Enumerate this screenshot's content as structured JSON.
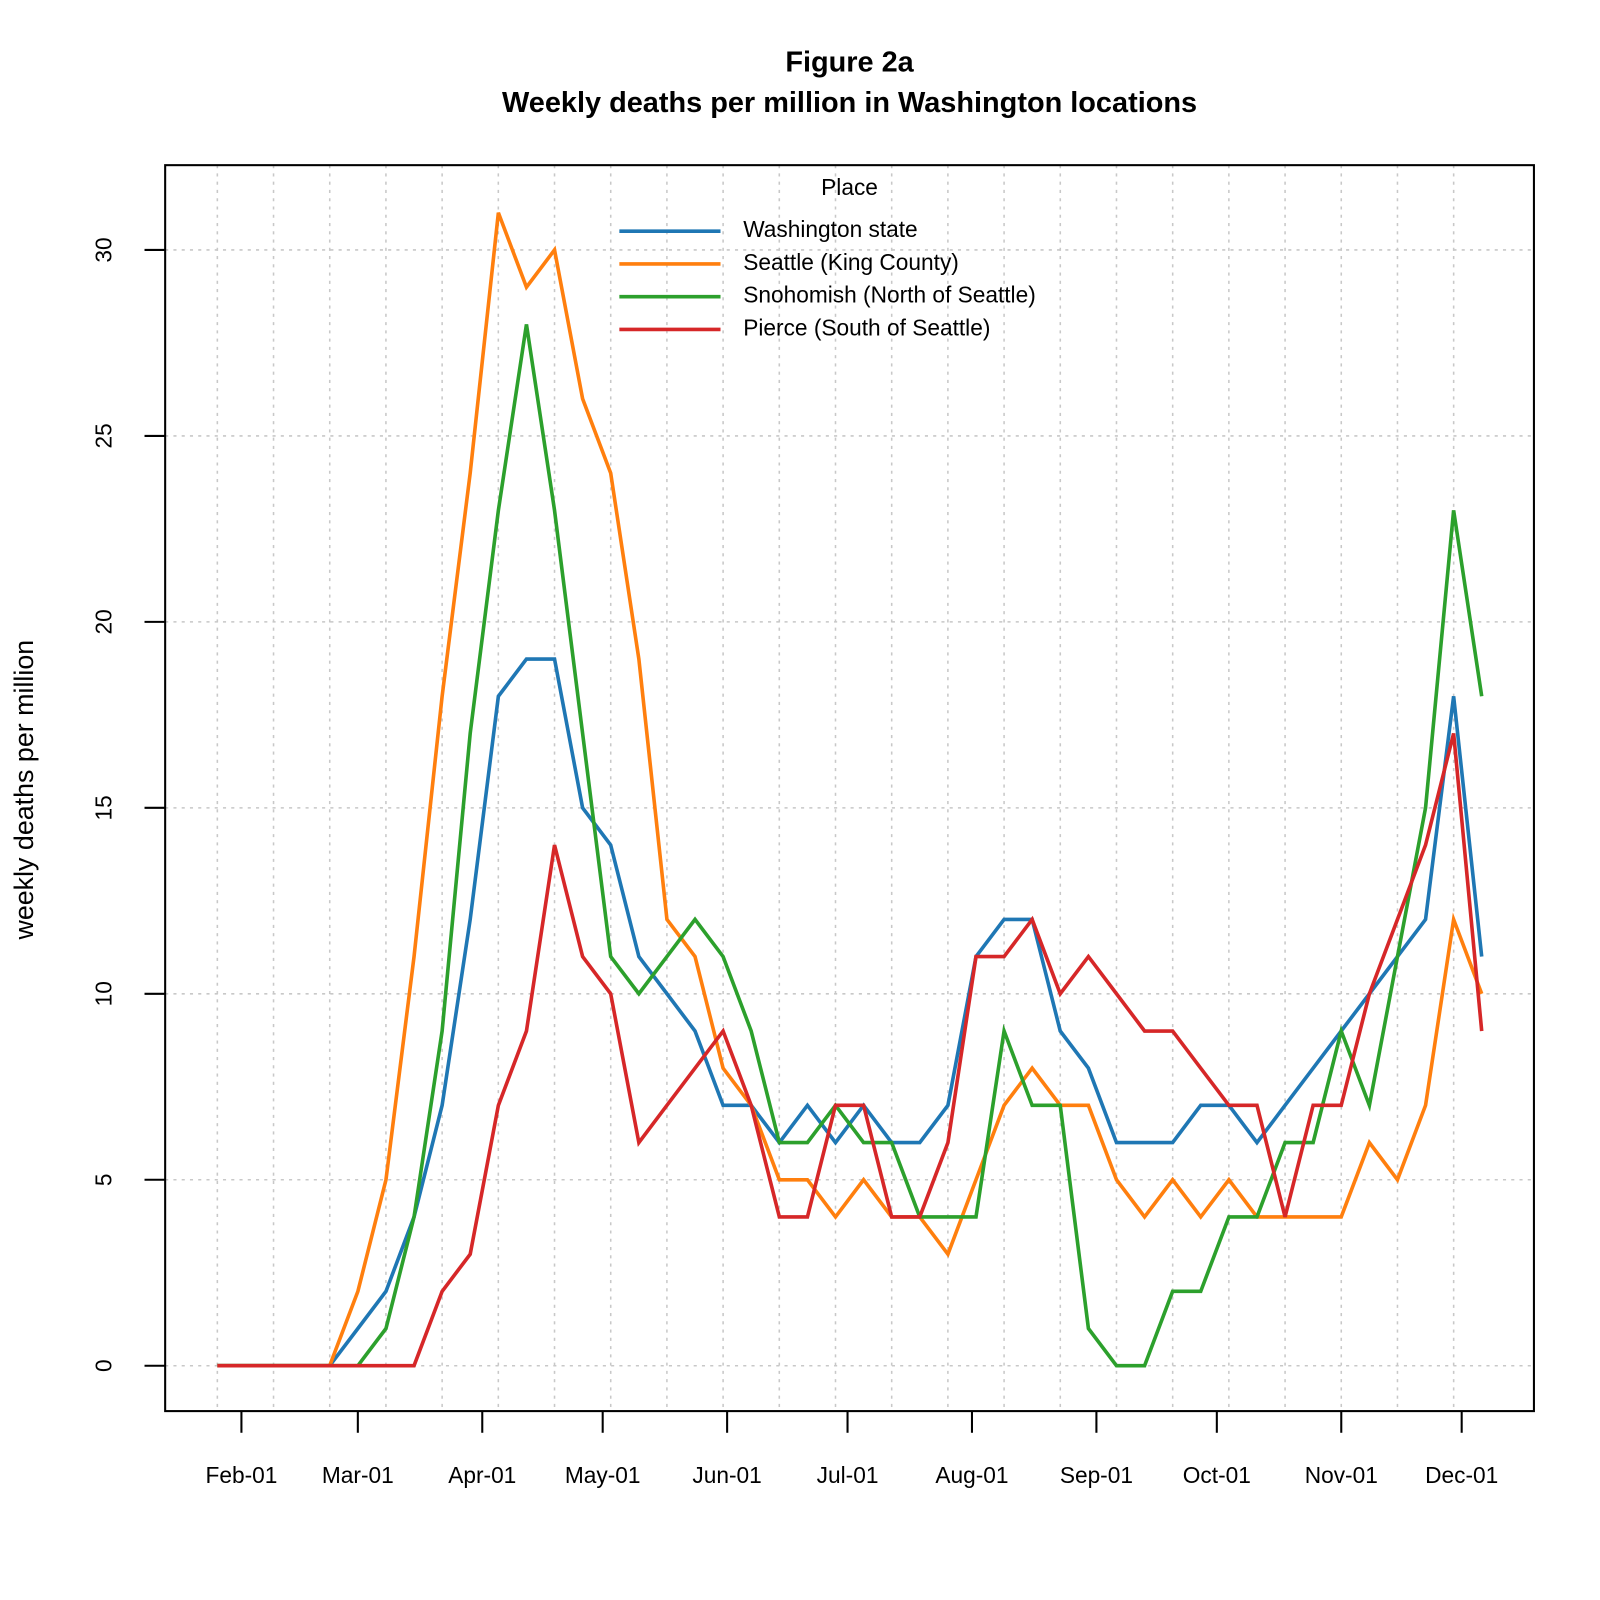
{
  "chart_data": {
    "type": "line",
    "title": "Figure 2a",
    "subtitle": "Weekly deaths per million in Washington locations",
    "y_label": "weekly deaths per million",
    "legend_title": "Place",
    "legend_position": "top",
    "grid": true,
    "x": [
      "Jan-26",
      "Feb-02",
      "Feb-09",
      "Feb-16",
      "Feb-23",
      "Mar-01",
      "Mar-08",
      "Mar-15",
      "Mar-22",
      "Mar-29",
      "Apr-05",
      "Apr-12",
      "Apr-19",
      "Apr-26",
      "May-03",
      "May-10",
      "May-17",
      "May-24",
      "May-31",
      "Jun-07",
      "Jun-14",
      "Jun-21",
      "Jun-28",
      "Jul-05",
      "Jul-12",
      "Jul-19",
      "Jul-26",
      "Aug-02",
      "Aug-09",
      "Aug-16",
      "Aug-23",
      "Aug-30",
      "Sep-06",
      "Sep-13",
      "Sep-20",
      "Sep-27",
      "Oct-04",
      "Oct-11",
      "Oct-18",
      "Oct-25",
      "Nov-01",
      "Nov-08",
      "Nov-15",
      "Nov-22",
      "Nov-29",
      "Dec-06"
    ],
    "xlim": [
      "Jan-13",
      "Dec-19"
    ],
    "xticks": [
      "Feb-01",
      "Mar-01",
      "Apr-01",
      "May-01",
      "Jun-01",
      "Jul-01",
      "Aug-01",
      "Sep-01",
      "Oct-01",
      "Nov-01",
      "Dec-01"
    ],
    "ylim": [
      -1.22,
      32.28
    ],
    "yticks": [
      0,
      5,
      10,
      15,
      20,
      25,
      30
    ],
    "series": [
      {
        "name": "Washington state",
        "color": "#1f77b4",
        "values": [
          0,
          0,
          0,
          0,
          0,
          1,
          2,
          4,
          7,
          12,
          18,
          19,
          19,
          15,
          14,
          11,
          10,
          9,
          7,
          7,
          6,
          7,
          6,
          7,
          6,
          6,
          7,
          11,
          12,
          12,
          9,
          8,
          6,
          6,
          6,
          7,
          7,
          6,
          7,
          8,
          9,
          10,
          11,
          12,
          18,
          11
        ]
      },
      {
        "name": "Seattle (King County)",
        "color": "#ff7f0e",
        "values": [
          0,
          0,
          0,
          0,
          0,
          2,
          5,
          11,
          18,
          24,
          31,
          29,
          30,
          26,
          24,
          19,
          12,
          11,
          8,
          7,
          5,
          5,
          4,
          5,
          4,
          4,
          3,
          5,
          7,
          8,
          7,
          7,
          5,
          4,
          5,
          4,
          5,
          4,
          4,
          4,
          4,
          6,
          5,
          7,
          12,
          10
        ]
      },
      {
        "name": "Snohomish (North of Seattle)",
        "color": "#2ca02c",
        "values": [
          0,
          0,
          0,
          0,
          0,
          0,
          1,
          4,
          9,
          17,
          23,
          28,
          23,
          17,
          11,
          10,
          11,
          12,
          11,
          9,
          6,
          6,
          7,
          6,
          6,
          4,
          4,
          4,
          9,
          7,
          7,
          1,
          0,
          0,
          2,
          2,
          4,
          4,
          6,
          6,
          9,
          7,
          11,
          15,
          23,
          18
        ]
      },
      {
        "name": "Pierce (South of Seattle)",
        "color": "#d62728",
        "values": [
          0,
          0,
          0,
          0,
          0,
          0,
          0,
          0,
          2,
          3,
          7,
          9,
          14,
          11,
          10,
          6,
          7,
          8,
          9,
          7,
          4,
          4,
          7,
          7,
          4,
          4,
          6,
          11,
          11,
          12,
          10,
          11,
          10,
          9,
          9,
          8,
          7,
          7,
          4,
          7,
          7,
          10,
          12,
          14,
          17,
          9
        ]
      }
    ]
  }
}
